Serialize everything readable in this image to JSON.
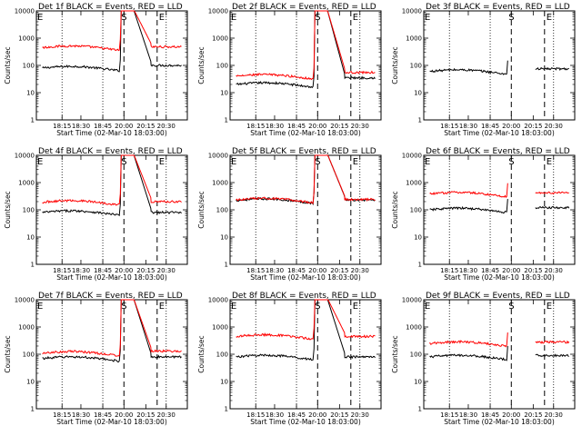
{
  "figure": {
    "common": {
      "xlabel": "Start Time (02-Mar-10 18:03:00)",
      "ylabel": "Counts/sec",
      "x_tick_labels": [
        "18:15",
        "18:30",
        "18:45",
        "20:00",
        "20:15",
        "20:30"
      ],
      "y_tick_labels": [
        "1",
        "10",
        "100",
        "1000",
        "10000"
      ],
      "marker_labels": {
        "start": "E",
        "s": "S",
        "e": "E"
      }
    }
  },
  "chart_data": [
    {
      "type": "line",
      "title": "Det 1f BLACK = Events, RED = LLD",
      "xlabel": "Start Time (02-Mar-10 18:03:00)",
      "ylabel": "Counts/sec",
      "ylim": [
        1,
        10000
      ],
      "yscale": "log",
      "x_tick_labels": [
        "18:15",
        "18:30",
        "18:45",
        "20:00",
        "20:15",
        "20:30"
      ],
      "markers": {
        "S": 0.58,
        "E": 0.8
      },
      "series": [
        {
          "color": "#000000",
          "pre_level": 80,
          "post_level": 100,
          "dropout": false
        },
        {
          "color": "#ff0000",
          "pre_level": 450,
          "post_level": 480,
          "dropout": false
        }
      ]
    },
    {
      "type": "line",
      "title": "Det 2f BLACK = Events, RED = LLD",
      "xlabel": "Start Time (02-Mar-10 18:03:00)",
      "ylabel": "Counts/sec",
      "ylim": [
        1,
        10000
      ],
      "yscale": "log",
      "x_tick_labels": [
        "18:15",
        "18:30",
        "18:45",
        "20:00",
        "20:15",
        "20:30"
      ],
      "markers": {
        "S": 0.58,
        "E": 0.8
      },
      "series": [
        {
          "color": "#000000",
          "pre_level": 20,
          "post_level": 35,
          "dropout": false
        },
        {
          "color": "#ff0000",
          "pre_level": 40,
          "post_level": 55,
          "dropout": false
        }
      ]
    },
    {
      "type": "line",
      "title": "Det 3f BLACK = Events, RED = LLD",
      "xlabel": "Start Time (02-Mar-10 18:03:00)",
      "ylabel": "Counts/sec",
      "ylim": [
        1,
        10000
      ],
      "yscale": "log",
      "x_tick_labels": [
        "18:15",
        "18:30",
        "18:45",
        "20:00",
        "20:15",
        "20:30"
      ],
      "markers": {
        "S": 0.58,
        "E": 0.8
      },
      "series": [
        {
          "color": "#000000",
          "pre_level": 60,
          "post_level": 75,
          "dropout": true
        }
      ]
    },
    {
      "type": "line",
      "title": "Det 4f BLACK = Events, RED = LLD",
      "xlabel": "Start Time (02-Mar-10 18:03:00)",
      "ylabel": "Counts/sec",
      "ylim": [
        1,
        10000
      ],
      "yscale": "log",
      "x_tick_labels": [
        "18:15",
        "18:30",
        "18:45",
        "20:00",
        "20:15",
        "20:30"
      ],
      "markers": {
        "S": 0.58,
        "E": 0.8
      },
      "series": [
        {
          "color": "#000000",
          "pre_level": 80,
          "post_level": 80,
          "dropout": false
        },
        {
          "color": "#ff0000",
          "pre_level": 190,
          "post_level": 200,
          "dropout": false
        }
      ]
    },
    {
      "type": "line",
      "title": "Det 5f BLACK = Events, RED = LLD",
      "xlabel": "Start Time (02-Mar-10 18:03:00)",
      "ylabel": "Counts/sec",
      "ylim": [
        1,
        10000
      ],
      "yscale": "log",
      "x_tick_labels": [
        "18:15",
        "18:30",
        "18:45",
        "20:00",
        "20:15",
        "20:30"
      ],
      "markers": {
        "S": 0.58,
        "E": 0.8
      },
      "series": [
        {
          "color": "#000000",
          "pre_level": 220,
          "post_level": 230,
          "dropout": false
        },
        {
          "color": "#ff0000",
          "pre_level": 230,
          "post_level": 240,
          "dropout": false
        }
      ]
    },
    {
      "type": "line",
      "title": "Det 6f BLACK = Events, RED = LLD",
      "xlabel": "Start Time (02-Mar-10 18:03:00)",
      "ylabel": "Counts/sec",
      "ylim": [
        1,
        10000
      ],
      "yscale": "log",
      "x_tick_labels": [
        "18:15",
        "18:30",
        "18:45",
        "20:00",
        "20:15",
        "20:30"
      ],
      "markers": {
        "S": 0.58,
        "E": 0.8
      },
      "series": [
        {
          "color": "#000000",
          "pre_level": 100,
          "post_level": 120,
          "dropout": true
        },
        {
          "color": "#ff0000",
          "pre_level": 380,
          "post_level": 420,
          "dropout": true
        }
      ]
    },
    {
      "type": "line",
      "title": "Det 7f BLACK = Events, RED = LLD",
      "xlabel": "Start Time (02-Mar-10 18:03:00)",
      "ylabel": "Counts/sec",
      "ylim": [
        1,
        10000
      ],
      "yscale": "log",
      "x_tick_labels": [
        "18:15",
        "18:30",
        "18:45",
        "20:00",
        "20:15",
        "20:30"
      ],
      "markers": {
        "S": 0.58,
        "E": 0.8
      },
      "series": [
        {
          "color": "#000000",
          "pre_level": 70,
          "post_level": 80,
          "dropout": false
        },
        {
          "color": "#ff0000",
          "pre_level": 110,
          "post_level": 130,
          "dropout": false
        }
      ]
    },
    {
      "type": "line",
      "title": "Det 8f BLACK = Events, RED = LLD",
      "xlabel": "Start Time (02-Mar-10 18:03:00)",
      "ylabel": "Counts/sec",
      "ylim": [
        1,
        10000
      ],
      "yscale": "log",
      "x_tick_labels": [
        "18:15",
        "18:30",
        "18:45",
        "20:00",
        "20:15",
        "20:30"
      ],
      "markers": {
        "S": 0.58,
        "E": 0.8
      },
      "series": [
        {
          "color": "#000000",
          "pre_level": 80,
          "post_level": 80,
          "dropout": false
        },
        {
          "color": "#ff0000",
          "pre_level": 450,
          "post_level": 450,
          "dropout": false
        }
      ]
    },
    {
      "type": "line",
      "title": "Det 9f BLACK = Events, RED = LLD",
      "xlabel": "Start Time (02-Mar-10 18:03:00)",
      "ylabel": "Counts/sec",
      "ylim": [
        1,
        10000
      ],
      "yscale": "log",
      "x_tick_labels": [
        "18:15",
        "18:30",
        "18:45",
        "20:00",
        "20:15",
        "20:30"
      ],
      "markers": {
        "S": 0.58,
        "E": 0.8
      },
      "series": [
        {
          "color": "#000000",
          "pre_level": 80,
          "post_level": 90,
          "dropout": true
        },
        {
          "color": "#ff0000",
          "pre_level": 250,
          "post_level": 280,
          "dropout": true
        }
      ]
    }
  ]
}
